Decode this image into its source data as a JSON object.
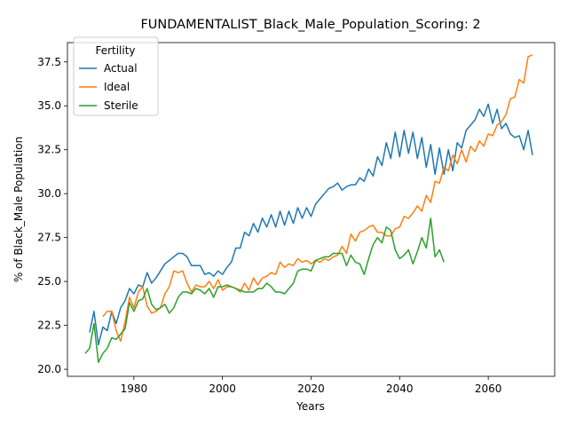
{
  "chart_data": {
    "type": "line",
    "title": "FUNDAMENTALIST_Black_Male_Population_Scoring: 2",
    "xlabel": "Years",
    "ylabel": "% of Black_Male Population",
    "xlim": [
      1965,
      2075
    ],
    "ylim": [
      19.6,
      38.6
    ],
    "x_ticks": [
      1980,
      2000,
      2020,
      2040,
      2060
    ],
    "y_ticks": [
      20.0,
      22.5,
      25.0,
      27.5,
      30.0,
      32.5,
      35.0,
      37.5
    ],
    "grid": false,
    "legend": {
      "title": "Fertility",
      "placement": "top-left"
    },
    "series": [
      {
        "name": "Actual",
        "color": "#1f77b4",
        "x": [
          1970,
          1971,
          1972,
          1973,
          1974,
          1975,
          1976,
          1977,
          1978,
          1979,
          1980,
          1981,
          1982,
          1983,
          1984,
          1985,
          1986,
          1987,
          1988,
          1989,
          1990,
          1991,
          1992,
          1993,
          1994,
          1995,
          1996,
          1997,
          1998,
          1999,
          2000,
          2001,
          2002,
          2003,
          2004,
          2005,
          2006,
          2007,
          2008,
          2009,
          2010,
          2011,
          2012,
          2013,
          2014,
          2015,
          2016,
          2017,
          2018,
          2019,
          2020,
          2021,
          2022,
          2023,
          2024,
          2025,
          2026,
          2027,
          2028,
          2029,
          2030,
          2031,
          2032,
          2033,
          2034,
          2035,
          2036,
          2037,
          2038,
          2039,
          2040,
          2041,
          2042,
          2043,
          2044,
          2045,
          2046,
          2047,
          2048,
          2049,
          2050,
          2051,
          2052,
          2053,
          2054,
          2055,
          2056,
          2057,
          2058,
          2059,
          2060,
          2061,
          2062,
          2063,
          2064,
          2065,
          2066,
          2067,
          2068,
          2069,
          2070
        ],
        "values": [
          22.1,
          23.3,
          21.4,
          22.4,
          22.2,
          23.3,
          22.6,
          23.5,
          23.9,
          24.6,
          24.3,
          24.8,
          24.7,
          25.5,
          24.9,
          25.2,
          25.6,
          26.0,
          26.2,
          26.4,
          26.6,
          26.6,
          26.4,
          25.9,
          25.9,
          25.9,
          25.4,
          25.5,
          25.3,
          25.6,
          25.4,
          25.8,
          26.1,
          26.9,
          26.9,
          27.8,
          27.6,
          28.3,
          27.8,
          28.6,
          28.1,
          28.8,
          28.1,
          29.0,
          28.2,
          29.0,
          28.3,
          29.2,
          28.6,
          29.2,
          28.7,
          29.4,
          29.7,
          30.0,
          30.3,
          30.4,
          30.6,
          30.2,
          30.4,
          30.5,
          30.5,
          30.9,
          30.7,
          31.4,
          31.0,
          32.1,
          31.6,
          32.9,
          32.0,
          33.5,
          32.1,
          33.6,
          32.3,
          33.5,
          32.0,
          33.2,
          31.5,
          32.8,
          31.1,
          32.6,
          31.1,
          32.5,
          31.3,
          32.9,
          32.6,
          33.6,
          33.9,
          34.2,
          34.8,
          34.4,
          35.1,
          34.0,
          34.8,
          33.7,
          34.0,
          33.4,
          33.2,
          33.3,
          32.5,
          33.6,
          32.2
        ]
      },
      {
        "name": "Ideal",
        "color": "#ff7f0e",
        "x": [
          1973,
          1974,
          1975,
          1976,
          1977,
          1978,
          1979,
          1980,
          1981,
          1982,
          1983,
          1984,
          1985,
          1986,
          1987,
          1988,
          1989,
          1990,
          1991,
          1992,
          1993,
          1994,
          1995,
          1996,
          1997,
          1998,
          1999,
          2000,
          2001,
          2002,
          2003,
          2004,
          2005,
          2006,
          2007,
          2008,
          2009,
          2010,
          2011,
          2012,
          2013,
          2014,
          2015,
          2016,
          2017,
          2018,
          2019,
          2020,
          2021,
          2022,
          2023,
          2024,
          2025,
          2026,
          2027,
          2028,
          2029,
          2030,
          2031,
          2032,
          2033,
          2034,
          2035,
          2036,
          2037,
          2038,
          2039,
          2040,
          2041,
          2042,
          2043,
          2044,
          2045,
          2046,
          2047,
          2048,
          2049,
          2050,
          2051,
          2052,
          2053,
          2054,
          2055,
          2056,
          2057,
          2058,
          2059,
          2060,
          2061,
          2062,
          2063,
          2064,
          2065,
          2066,
          2067,
          2068,
          2069,
          2070
        ],
        "values": [
          23.0,
          23.3,
          23.3,
          22.2,
          21.6,
          22.7,
          24.1,
          23.5,
          24.4,
          24.7,
          23.6,
          23.2,
          23.3,
          23.5,
          24.3,
          24.7,
          25.6,
          25.5,
          25.6,
          24.9,
          24.4,
          24.8,
          24.7,
          24.7,
          25.0,
          24.6,
          25.1,
          24.5,
          24.7,
          24.7,
          24.6,
          24.4,
          24.9,
          24.5,
          25.2,
          24.8,
          25.2,
          25.3,
          25.5,
          25.4,
          26.1,
          25.8,
          26.0,
          25.9,
          26.3,
          26.1,
          26.2,
          26.0,
          26.2,
          26.1,
          26.3,
          26.2,
          26.4,
          26.5,
          27.0,
          26.6,
          27.7,
          27.3,
          27.8,
          27.9,
          28.1,
          28.2,
          27.8,
          27.8,
          27.6,
          27.6,
          28.0,
          28.1,
          28.7,
          28.6,
          28.9,
          29.3,
          29.0,
          29.9,
          29.5,
          30.7,
          30.6,
          31.5,
          31.3,
          32.2,
          31.7,
          32.5,
          31.8,
          32.7,
          32.4,
          33.0,
          32.7,
          33.4,
          33.3,
          33.9,
          34.1,
          34.5,
          35.4,
          35.5,
          36.5,
          36.3,
          37.8,
          37.9
        ]
      },
      {
        "name": "Sterile",
        "color": "#2ca02c",
        "x": [
          1969,
          1970,
          1971,
          1972,
          1973,
          1974,
          1975,
          1976,
          1977,
          1978,
          1979,
          1980,
          1981,
          1982,
          1983,
          1984,
          1985,
          1986,
          1987,
          1988,
          1989,
          1990,
          1991,
          1992,
          1993,
          1994,
          1995,
          1996,
          1997,
          1998,
          1999,
          2000,
          2001,
          2002,
          2003,
          2004,
          2005,
          2006,
          2007,
          2008,
          2009,
          2010,
          2011,
          2012,
          2013,
          2014,
          2015,
          2016,
          2017,
          2018,
          2019,
          2020,
          2021,
          2022,
          2023,
          2024,
          2025,
          2026,
          2027,
          2028,
          2029,
          2030,
          2031,
          2032,
          2033,
          2034,
          2035,
          2036,
          2037,
          2038,
          2039,
          2040,
          2041,
          2042,
          2043,
          2044,
          2045,
          2046,
          2047,
          2048,
          2049,
          2050
        ],
        "values": [
          20.9,
          21.2,
          22.6,
          20.4,
          20.9,
          21.2,
          21.8,
          21.7,
          22.0,
          22.3,
          23.8,
          23.3,
          23.9,
          24.0,
          24.6,
          23.7,
          23.4,
          23.5,
          23.7,
          23.2,
          23.5,
          24.1,
          24.4,
          24.4,
          24.3,
          24.6,
          24.5,
          24.3,
          24.6,
          24.1,
          24.7,
          24.7,
          24.8,
          24.7,
          24.6,
          24.5,
          24.4,
          24.4,
          24.4,
          24.6,
          24.6,
          24.9,
          24.7,
          24.4,
          24.4,
          24.3,
          24.6,
          24.9,
          25.6,
          25.7,
          25.7,
          25.6,
          26.2,
          26.3,
          26.4,
          26.4,
          26.6,
          26.6,
          26.6,
          25.9,
          26.5,
          26.1,
          26.0,
          25.4,
          26.3,
          27.1,
          27.5,
          27.2,
          28.1,
          27.9,
          26.8,
          26.3,
          26.5,
          26.8,
          26.0,
          26.7,
          27.5,
          26.9,
          28.6,
          26.4,
          26.8,
          26.1
        ]
      }
    ]
  }
}
